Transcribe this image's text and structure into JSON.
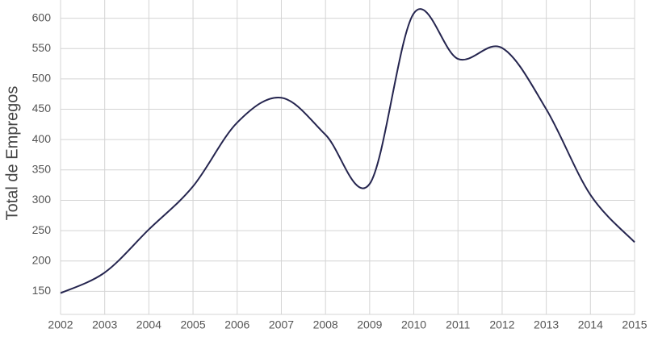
{
  "chart_data": {
    "type": "line",
    "y_label": "Total de Empregos",
    "x": [
      2002,
      2003,
      2004,
      2005,
      2006,
      2007,
      2008,
      2009,
      2010,
      2011,
      2012,
      2013,
      2014,
      2015
    ],
    "series": [
      {
        "color": "#25254f",
        "values": [
          147,
          181,
          252,
          323,
          428,
          469,
          408,
          327,
          608,
          533,
          551,
          450,
          309,
          231
        ]
      }
    ],
    "xlim": [
      2002,
      2015
    ],
    "xticks": [
      2002,
      2003,
      2004,
      2005,
      2006,
      2007,
      2008,
      2009,
      2010,
      2011,
      2012,
      2013,
      2014,
      2015
    ],
    "ylim": [
      112,
      630
    ],
    "yticks": [
      150,
      200,
      250,
      300,
      350,
      400,
      450,
      500,
      550,
      600
    ],
    "grid": true
  }
}
